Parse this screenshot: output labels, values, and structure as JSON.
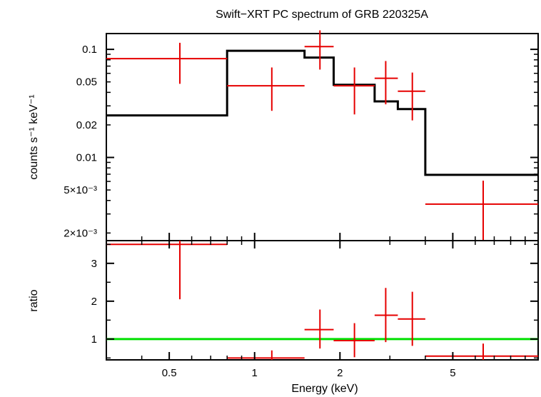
{
  "chart_data": {
    "type": "scatter",
    "title": "Swift−XRT PC spectrum of GRB 220325A",
    "xlabel": "Energy (keV)",
    "x_scale": "log",
    "xlim": [
      0.3,
      10
    ],
    "x_ticks": [
      {
        "value": 0.5,
        "label": "0.5"
      },
      {
        "value": 1,
        "label": "1"
      },
      {
        "value": 2,
        "label": "2"
      },
      {
        "value": 5,
        "label": "5"
      }
    ],
    "colors": {
      "data": "#e60000",
      "model": "#000000",
      "unity_line": "#00e000"
    },
    "panels": [
      {
        "name": "spectrum",
        "ylabel": "counts s⁻¹ keV⁻¹",
        "y_scale": "log",
        "ylim": [
          0.0017,
          0.14
        ],
        "y_ticks": [
          {
            "value": 0.1,
            "label": "0.1"
          },
          {
            "value": 0.05,
            "label": "0.05"
          },
          {
            "value": 0.02,
            "label": "0.02"
          },
          {
            "value": 0.01,
            "label": "0.01"
          },
          {
            "value": 0.005,
            "label": "5×10⁻³"
          },
          {
            "value": 0.002,
            "label": "2×10⁻³"
          }
        ],
        "data": [
          {
            "x": 0.545,
            "xlo": 0.3,
            "xhi": 0.8,
            "y": 0.082,
            "ylo": 0.048,
            "yhi": 0.115
          },
          {
            "x": 1.15,
            "xlo": 0.8,
            "xhi": 1.5,
            "y": 0.046,
            "ylo": 0.027,
            "yhi": 0.068
          },
          {
            "x": 1.7,
            "xlo": 1.5,
            "xhi": 1.9,
            "y": 0.106,
            "ylo": 0.065,
            "yhi": 0.15
          },
          {
            "x": 2.25,
            "xlo": 1.9,
            "xhi": 2.65,
            "y": 0.046,
            "ylo": 0.025,
            "yhi": 0.068
          },
          {
            "x": 2.9,
            "xlo": 2.65,
            "xhi": 3.2,
            "y": 0.054,
            "ylo": 0.031,
            "yhi": 0.078
          },
          {
            "x": 3.6,
            "xlo": 3.2,
            "xhi": 4.0,
            "y": 0.041,
            "ylo": 0.022,
            "yhi": 0.061
          },
          {
            "x": 6.4,
            "xlo": 4.0,
            "xhi": 10.0,
            "y": 0.0037,
            "ylo": 0.0017,
            "yhi": 0.0061
          }
        ],
        "model_steps": [
          {
            "xlo": 0.3,
            "xhi": 0.8,
            "y": 0.0245
          },
          {
            "xlo": 0.8,
            "xhi": 1.5,
            "y": 0.097
          },
          {
            "xlo": 1.5,
            "xhi": 1.9,
            "y": 0.084
          },
          {
            "xlo": 1.9,
            "xhi": 2.65,
            "y": 0.047
          },
          {
            "xlo": 2.65,
            "xhi": 3.2,
            "y": 0.033
          },
          {
            "xlo": 3.2,
            "xhi": 4.0,
            "y": 0.028
          },
          {
            "xlo": 4.0,
            "xhi": 10.0,
            "y": 0.0069
          }
        ]
      },
      {
        "name": "ratio",
        "ylabel": "ratio",
        "y_scale": "linear",
        "ylim": [
          0.45,
          3.6
        ],
        "y_ticks": [
          {
            "value": 1,
            "label": "1"
          },
          {
            "value": 2,
            "label": "2"
          },
          {
            "value": 3,
            "label": "3"
          }
        ],
        "reference_line": 1,
        "data": [
          {
            "x": 0.545,
            "xlo": 0.3,
            "xhi": 0.8,
            "y": 3.5,
            "ylo": 2.05,
            "yhi": 3.6
          },
          {
            "x": 1.15,
            "xlo": 0.8,
            "xhi": 1.5,
            "y": 0.5,
            "ylo": 0.45,
            "yhi": 0.7
          },
          {
            "x": 1.7,
            "xlo": 1.5,
            "xhi": 1.9,
            "y": 1.25,
            "ylo": 0.75,
            "yhi": 1.78
          },
          {
            "x": 2.25,
            "xlo": 1.9,
            "xhi": 2.65,
            "y": 0.96,
            "ylo": 0.52,
            "yhi": 1.42
          },
          {
            "x": 2.9,
            "xlo": 2.65,
            "xhi": 3.2,
            "y": 1.63,
            "ylo": 0.92,
            "yhi": 2.35
          },
          {
            "x": 3.6,
            "xlo": 3.2,
            "xhi": 4.0,
            "y": 1.53,
            "ylo": 0.82,
            "yhi": 2.25
          },
          {
            "x": 6.4,
            "xlo": 4.0,
            "xhi": 10.0,
            "y": 0.55,
            "ylo": 0.45,
            "yhi": 0.88
          }
        ]
      }
    ]
  }
}
